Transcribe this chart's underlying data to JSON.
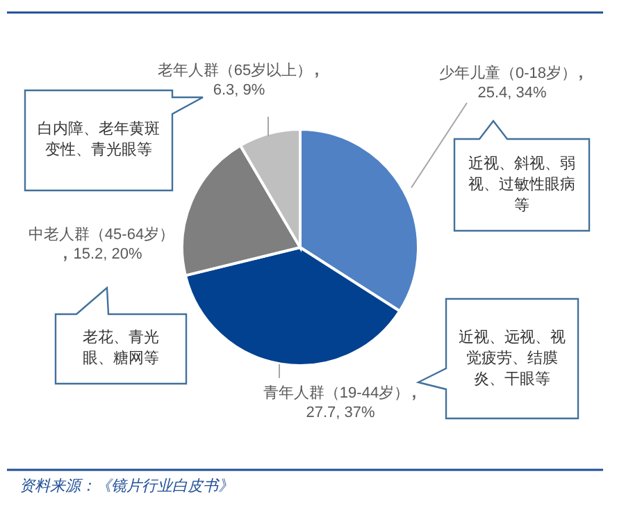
{
  "chart_data": {
    "type": "pie",
    "categories": [
      "少年儿童（0-18岁）",
      "青年人群（19-44岁）",
      "中老人群（45-64岁）",
      "老年人群（65岁以上）"
    ],
    "values": [
      25.4,
      27.7,
      15.2,
      6.3
    ],
    "value_labels": [
      "25.4, 34%",
      "27.7, 37%",
      "15.2, 20%",
      "6.3, 9%"
    ],
    "colors": [
      "#4f81c4",
      "#02418f",
      "#7f7f7f",
      "#bfbfbf"
    ],
    "annotations": [
      "近视、斜视、弱视、过敏性眼病等",
      "近视、远视、视觉疲劳、结膜炎、干眼等",
      "老花、青光眼、糖网等",
      "白内障、老年黄斑变性、青光眼等",
      "资料来源：《镜片行业白皮书》"
    ]
  }
}
